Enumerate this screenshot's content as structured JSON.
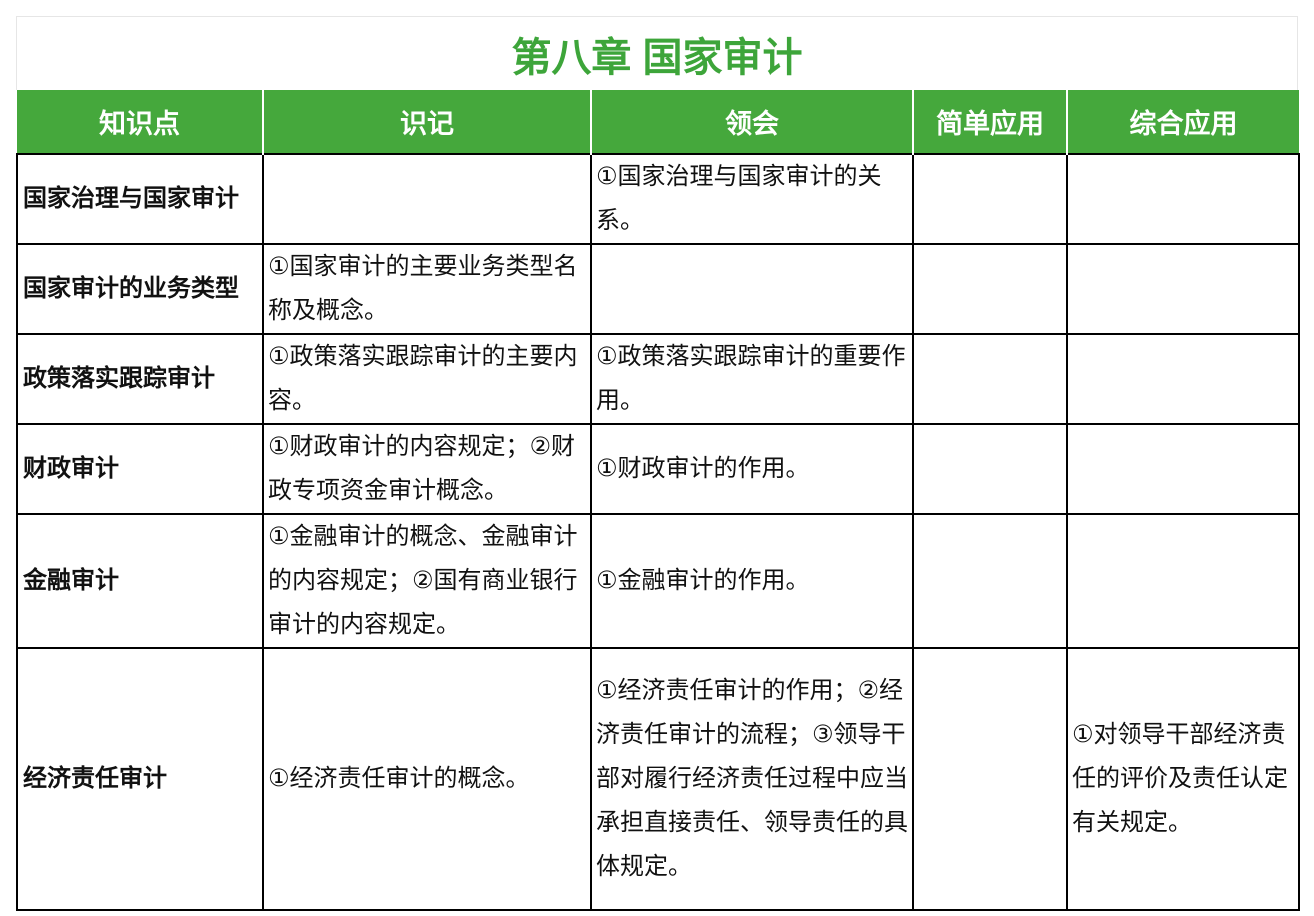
{
  "title": "第八章  国家审计",
  "colors": {
    "accent": "#3da53a",
    "header_bg": "#45a83c",
    "header_text": "#ffffff",
    "border": "#000000"
  },
  "columns": [
    "知识点",
    "识记",
    "领会",
    "简单应用",
    "综合应用"
  ],
  "rows": [
    {
      "topic": "国家治理与国家审计",
      "recall": "",
      "understand": "①国家治理与国家审计的关系。",
      "simple": "",
      "comprehensive": ""
    },
    {
      "topic": "国家审计的业务类型",
      "recall": "①国家审计的主要业务类型名称及概念。",
      "understand": "",
      "simple": "",
      "comprehensive": ""
    },
    {
      "topic": "政策落实跟踪审计",
      "recall": "①政策落实跟踪审计的主要内容。",
      "understand": "①政策落实跟踪审计的重要作用。",
      "simple": "",
      "comprehensive": ""
    },
    {
      "topic": "财政审计",
      "recall": "①财政审计的内容规定；②财政专项资金审计概念。",
      "understand": "①财政审计的作用。",
      "simple": "",
      "comprehensive": ""
    },
    {
      "topic": "金融审计",
      "recall": "①金融审计的概念、金融审计的内容规定；②国有商业银行审计的内容规定。",
      "understand": "①金融审计的作用。",
      "simple": "",
      "comprehensive": ""
    },
    {
      "topic": "经济责任审计",
      "recall": "①经济责任审计的概念。",
      "understand": "①经济责任审计的作用；②经济责任审计的流程；③领导干部对履行经济责任过程中应当承担直接责任、领导责任的具体规定。",
      "simple": "",
      "comprehensive": "①对领导干部经济责任的评价及责任认定有关规定。"
    }
  ]
}
